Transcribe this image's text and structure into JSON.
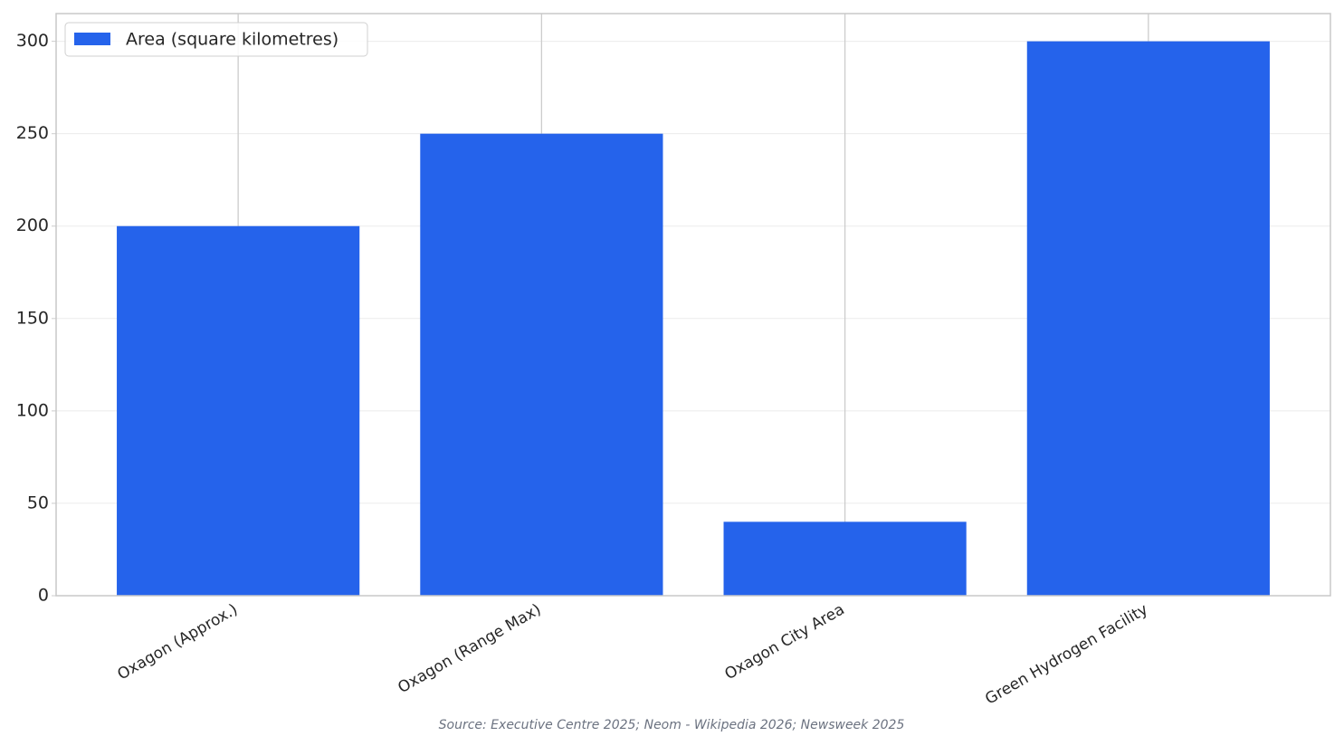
{
  "chart_data": {
    "type": "bar",
    "categories": [
      "Oxagon (Approx.)",
      "Oxagon (Range Max)",
      "Oxagon City Area",
      "Green Hydrogen Facility"
    ],
    "series": [
      {
        "name": "Area (square kilometres)",
        "color": "#2563eb",
        "values": [
          200,
          250,
          40,
          300
        ]
      }
    ],
    "ylim": [
      0,
      315
    ],
    "yticks": [
      0,
      50,
      100,
      150,
      200,
      250,
      300
    ],
    "grid": true,
    "legend": "upper left",
    "source": "Source: Executive Centre 2025; Neom - Wikipedia 2026; Newsweek 2025"
  }
}
